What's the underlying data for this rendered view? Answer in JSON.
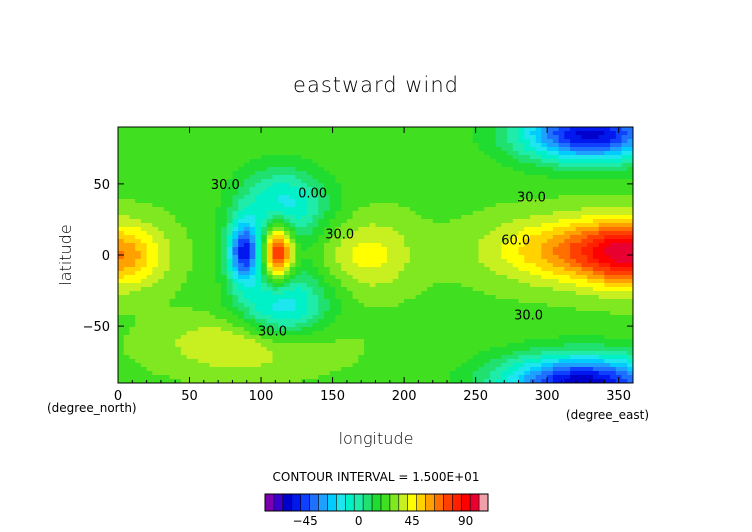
{
  "chart_data": {
    "type": "contour",
    "title": "eastward wind",
    "xlabel": "longitude",
    "ylabel": "latitude",
    "x_unit": "(degree_east)",
    "y_unit": "(degree_north)",
    "xlim": [
      0,
      360
    ],
    "ylim": [
      -90,
      90
    ],
    "x_ticks": [
      "0",
      "50",
      "100",
      "150",
      "200",
      "250",
      "300",
      "350"
    ],
    "y_ticks": [
      "50",
      "0",
      "−50"
    ],
    "contour_interval_text": "CONTOUR INTERVAL = 1.500E+01",
    "contour_interval": 15,
    "levels": [
      -75,
      -67.5,
      -60,
      -52.5,
      -45,
      -37.5,
      -30,
      -22.5,
      -15,
      -7.5,
      0,
      7.5,
      15,
      22.5,
      30,
      37.5,
      45,
      52.5,
      60,
      67.5,
      75,
      82.5,
      90,
      97.5,
      105
    ],
    "contour_labels": [
      {
        "text": "30.0",
        "lon": 75,
        "lat": 50
      },
      {
        "text": "0.00",
        "lon": 136,
        "lat": 44
      },
      {
        "text": "30.0",
        "lon": 155,
        "lat": 15
      },
      {
        "text": "30.0",
        "lon": 289,
        "lat": 41
      },
      {
        "text": "60.0",
        "lon": 278,
        "lat": 11
      },
      {
        "text": "30.0",
        "lon": 287,
        "lat": -42
      },
      {
        "text": "30.0",
        "lon": 108,
        "lat": -53
      }
    ],
    "features": [
      {
        "kind": "jet",
        "lon": 0,
        "lat": 0,
        "value": 68
      },
      {
        "kind": "jet",
        "lon": 330,
        "lat": 3,
        "value": 72
      },
      {
        "kind": "max",
        "lon": 112,
        "lat": 2,
        "value": 95
      },
      {
        "kind": "min",
        "lon": 88,
        "lat": 2,
        "value": -45
      },
      {
        "kind": "min",
        "lon": 115,
        "lat": 35,
        "value": -12
      },
      {
        "kind": "min",
        "lon": 115,
        "lat": -35,
        "value": -15
      },
      {
        "kind": "max",
        "lon": 175,
        "lat": 0,
        "value": 48
      },
      {
        "kind": "max",
        "lon": 90,
        "lat": -63,
        "value": 48
      },
      {
        "kind": "min",
        "lon": 330,
        "lat": 85,
        "value": -55
      },
      {
        "kind": "min",
        "lon": 325,
        "lat": -90,
        "value": -58
      }
    ],
    "colorbar": {
      "tick_labels": [
        "−45",
        "0",
        "45",
        "90"
      ],
      "tick_values": [
        -45,
        0,
        45,
        90
      ]
    },
    "palette": [
      "#7c00b0",
      "#3c00cc",
      "#0000cc",
      "#0018ee",
      "#1040ff",
      "#1e70ff",
      "#1ea0ff",
      "#00ccff",
      "#1ee6ee",
      "#00f0c8",
      "#20ecaa",
      "#20e070",
      "#20dc30",
      "#40e020",
      "#80e820",
      "#c8f020",
      "#ffff00",
      "#ffd200",
      "#ffa100",
      "#ff7000",
      "#ff4000",
      "#ff2000",
      "#ff0000",
      "#e80030",
      "#f0a0a8"
    ]
  }
}
